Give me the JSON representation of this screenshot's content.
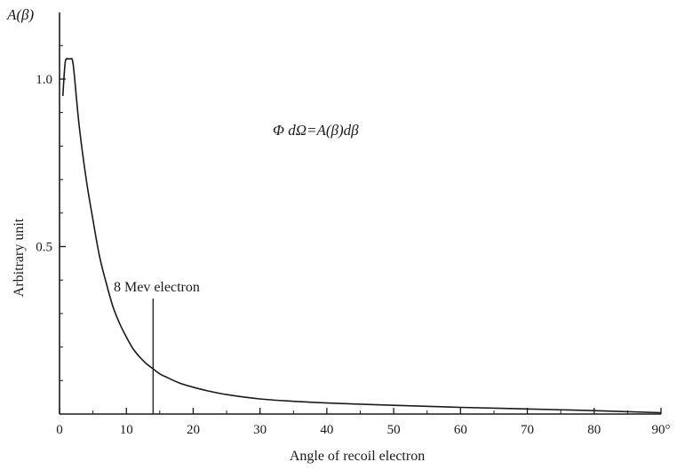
{
  "chart_data": {
    "type": "line",
    "title": "",
    "formula": "Φ dΩ=A(β)dβ",
    "ylabel_top": "A(β)",
    "ylabel": "Arbitrary unit",
    "xlabel": "Angle of recoil electron",
    "xlim": [
      0,
      90
    ],
    "ylim": [
      0,
      1.18
    ],
    "grid": false,
    "x_ticks": [
      0,
      10,
      20,
      30,
      40,
      50,
      60,
      70,
      80,
      90
    ],
    "x_tick_labels": [
      "0",
      "10",
      "20",
      "30",
      "40",
      "50",
      "60",
      "70",
      "80",
      "90°"
    ],
    "y_ticks": [
      0.5,
      1.0
    ],
    "y_tick_labels": [
      "0.5",
      "1.0"
    ],
    "series": [
      {
        "x": [
          0.5,
          0.8,
          1.0,
          1.3,
          1.6,
          2.0,
          2.5,
          3,
          4,
          5,
          6,
          7,
          8,
          9,
          10,
          11,
          12,
          13,
          14,
          15,
          16,
          18,
          20,
          22,
          25,
          30,
          35,
          40,
          50,
          60,
          70,
          80,
          90
        ],
        "y": [
          0.95,
          1.04,
          1.06,
          1.06,
          1.06,
          1.05,
          0.95,
          0.85,
          0.7,
          0.58,
          0.47,
          0.39,
          0.32,
          0.27,
          0.23,
          0.195,
          0.17,
          0.15,
          0.135,
          0.12,
          0.11,
          0.092,
          0.08,
          0.07,
          0.058,
          0.045,
          0.038,
          0.033,
          0.026,
          0.02,
          0.015,
          0.01,
          0.004
        ]
      }
    ],
    "annotations": [
      {
        "text": "8 Mev electron",
        "x": 14
      }
    ]
  }
}
